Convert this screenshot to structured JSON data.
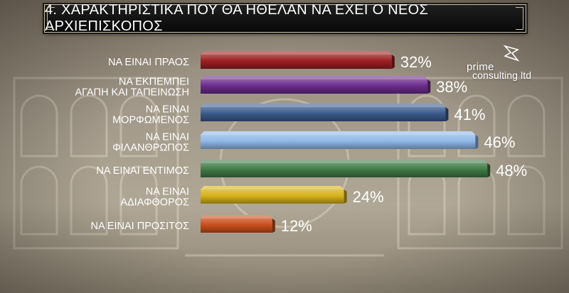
{
  "title": "4. ΧΑΡΑΚΤΗΡΙΣΤΙΚΑ ΠΟΥ ΘΑ ΗΘΕΛΑΝ ΝΑ ΕΧΕΙ Ο ΝΕΟΣ ΑΡΧΙΕΠΙΣΚΟΠΟΣ",
  "logo": {
    "line1": "prime",
    "line2": "consulting ltd"
  },
  "chart_data": {
    "type": "bar",
    "orientation": "horizontal",
    "categories": [
      [
        "ΝΑ ΕΙΝΑΙ ΠΡΑΟΣ"
      ],
      [
        "ΝΑ ΕΚΠΕΜΠΕΙ",
        "ΑΓΑΠΗ ΚΑΙ ΤΑΠΕΙΝΩΣΗ"
      ],
      [
        "ΝΑ ΕΙΝΑΙ",
        "ΜΟΡΦΩΜΕΝΟΣ"
      ],
      [
        "ΝΑ ΕΙΝΑΙ",
        "ΦΙΛΑΝΘΡΩΠΟΣ"
      ],
      [
        "ΝΑ ΕΙΝΑΙ ΕΝΤΙΜΟΣ"
      ],
      [
        "ΝΑ ΕΙΝΑΙ",
        "ΑΔΙΑΦΘΟΡΟΣ"
      ],
      [
        "ΝΑ ΕΙΝΑΙ ΠΡΟΣΙΤΟΣ"
      ]
    ],
    "values": [
      32,
      38,
      41,
      46,
      48,
      24,
      12
    ],
    "value_labels": [
      "32%",
      "38%",
      "41%",
      "46%",
      "48%",
      "24%",
      "12%"
    ],
    "colors": [
      "#9c1f22",
      "#6c2b8c",
      "#3b5a8c",
      "#8fb8e8",
      "#3f7a45",
      "#d7b21a",
      "#c94f1c"
    ],
    "xlim": [
      0,
      50
    ],
    "grid": false,
    "legend": "none"
  }
}
